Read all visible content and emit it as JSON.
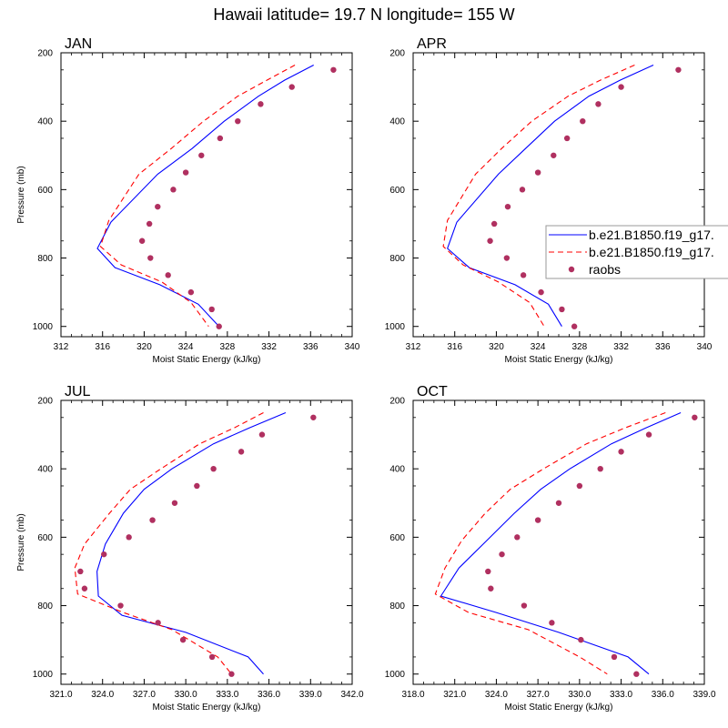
{
  "figure_title": "Hawaii  latitude= 19.7 N longitude= 155 W",
  "legend": {
    "entries": [
      {
        "label": "b.e21.B1850.f19_g17.",
        "style": "solid",
        "color": "#0000ff"
      },
      {
        "label": "b.e21.B1850.f19_g17.",
        "style": "dashed",
        "color": "#ff0000"
      },
      {
        "label": "raobs",
        "style": "marker",
        "color": "#b03060"
      }
    ]
  },
  "chart_data": [
    {
      "type": "line",
      "title": "JAN",
      "xlabel": "Moist Static Energy (kJ/kg)",
      "ylabel": "Pressure (mb)",
      "xlim": [
        312,
        340
      ],
      "xticks": [
        "312",
        "316",
        "320",
        "324",
        "328",
        "332",
        "336",
        "340"
      ],
      "ylim": [
        200,
        1030
      ],
      "yticks": [
        "200",
        "400",
        "600",
        "800",
        "1000"
      ],
      "series": [
        {
          "name": "b.e21.B1850.f19_g17. (solid)",
          "color": "#0000ff",
          "style": "solid",
          "x": [
            336.3,
            333.5,
            331.0,
            327.7,
            324.6,
            321.3,
            316.8,
            315.5,
            317.2,
            321.5,
            325.2,
            327.2
          ],
          "y": [
            236,
            280,
            327,
            400,
            480,
            555,
            695,
            772,
            828,
            878,
            935,
            1000
          ]
        },
        {
          "name": "b.e21.B1850.f19_g17. (dashed)",
          "color": "#ff0000",
          "style": "dashed",
          "x": [
            334.5,
            331.8,
            329.0,
            325.7,
            322.6,
            319.5,
            316.6,
            315.8,
            317.8,
            321.7,
            324.5,
            326.2
          ],
          "y": [
            236,
            280,
            327,
            400,
            480,
            555,
            690,
            766,
            820,
            870,
            930,
            1000
          ]
        },
        {
          "name": "raobs",
          "color": "#b03060",
          "style": "marker",
          "x": [
            338.2,
            334.2,
            331.2,
            329.0,
            327.3,
            325.5,
            324.0,
            322.8,
            321.3,
            320.5,
            319.8,
            320.6,
            322.3,
            324.5,
            326.5,
            327.2
          ],
          "y": [
            250,
            300,
            350,
            400,
            450,
            500,
            550,
            600,
            650,
            700,
            750,
            800,
            850,
            900,
            950,
            1000
          ]
        }
      ]
    },
    {
      "type": "line",
      "title": "APR",
      "xlabel": "Moist Static Energy (kJ/kg)",
      "ylabel": "",
      "xlim": [
        312,
        340
      ],
      "xticks": [
        "312",
        "316",
        "320",
        "324",
        "328",
        "332",
        "336",
        "340"
      ],
      "ylim": [
        200,
        1030
      ],
      "yticks": [
        "200",
        "400",
        "600",
        "800",
        "1000"
      ],
      "series": [
        {
          "name": "b.e21.B1850.f19_g17. (solid)",
          "color": "#0000ff",
          "style": "solid",
          "x": [
            335.1,
            331.9,
            328.9,
            325.6,
            322.8,
            320.2,
            316.2,
            315.3,
            317.4,
            321.8,
            325.0,
            326.3
          ],
          "y": [
            236,
            280,
            327,
            400,
            480,
            555,
            695,
            772,
            828,
            878,
            935,
            1000
          ]
        },
        {
          "name": "b.e21.B1850.f19_g17. (dashed)",
          "color": "#ff0000",
          "style": "dashed",
          "x": [
            333.3,
            330.0,
            326.9,
            323.4,
            320.5,
            318.0,
            315.3,
            314.9,
            316.8,
            320.2,
            323.2,
            324.6
          ],
          "y": [
            236,
            280,
            327,
            400,
            480,
            555,
            690,
            766,
            820,
            870,
            930,
            1000
          ]
        },
        {
          "name": "raobs",
          "color": "#b03060",
          "style": "marker",
          "x": [
            337.5,
            332.0,
            329.8,
            328.3,
            326.8,
            325.5,
            324.0,
            322.5,
            321.1,
            319.8,
            319.4,
            321.0,
            322.6,
            324.3,
            326.3,
            327.5
          ],
          "y": [
            250,
            300,
            350,
            400,
            450,
            500,
            550,
            600,
            650,
            700,
            750,
            800,
            850,
            900,
            950,
            1000
          ]
        }
      ]
    },
    {
      "type": "line",
      "title": "JUL",
      "xlabel": "Moist Static Energy (kJ/kg)",
      "ylabel": "Pressure (mb)",
      "xlim": [
        321,
        342
      ],
      "xticks": [
        "321.0",
        "324.0",
        "327.0",
        "330.0",
        "333.0",
        "336.0",
        "339.0",
        "342.0"
      ],
      "ylim": [
        200,
        1030
      ],
      "yticks": [
        "200",
        "400",
        "600",
        "800",
        "1000"
      ],
      "series": [
        {
          "name": "b.e21.B1850.f19_g17. (solid)",
          "color": "#0000ff",
          "style": "solid",
          "x": [
            337.2,
            334.6,
            332.0,
            329.0,
            327.0,
            325.5,
            324.2,
            323.6,
            323.7,
            325.4,
            330.0,
            334.5,
            335.6
          ],
          "y": [
            236,
            280,
            327,
            400,
            460,
            530,
            620,
            700,
            772,
            828,
            878,
            950,
            1000
          ]
        },
        {
          "name": "b.e21.B1850.f19_g17. (dashed)",
          "color": "#ff0000",
          "style": "dashed",
          "x": [
            335.6,
            333.5,
            331.0,
            328.2,
            326.0,
            324.5,
            322.7,
            322.0,
            322.2,
            325.5,
            329.0,
            332.3,
            333.3
          ],
          "y": [
            236,
            280,
            327,
            400,
            460,
            530,
            620,
            690,
            766,
            820,
            870,
            950,
            1000
          ]
        },
        {
          "name": "raobs",
          "color": "#b03060",
          "style": "marker",
          "x": [
            339.2,
            335.5,
            334.0,
            332.0,
            330.8,
            329.2,
            327.6,
            325.9,
            324.1,
            322.4,
            322.7,
            325.3,
            328.0,
            329.8,
            331.9,
            333.3
          ],
          "y": [
            250,
            300,
            350,
            400,
            450,
            500,
            550,
            600,
            650,
            700,
            750,
            800,
            850,
            900,
            950,
            1000
          ]
        }
      ]
    },
    {
      "type": "line",
      "title": "OCT",
      "xlabel": "Moist Static Energy (kJ/kg)",
      "ylabel": "",
      "xlim": [
        318,
        339
      ],
      "xticks": [
        "318.0",
        "321.0",
        "324.0",
        "327.0",
        "330.0",
        "333.0",
        "336.0",
        "339.0"
      ],
      "ylim": [
        200,
        1030
      ],
      "yticks": [
        "200",
        "400",
        "600",
        "800",
        "1000"
      ],
      "series": [
        {
          "name": "b.e21.B1850.f19_g17. (solid)",
          "color": "#0000ff",
          "style": "solid",
          "x": [
            337.3,
            334.8,
            332.3,
            329.3,
            327.2,
            325.3,
            323.3,
            321.3,
            320.0,
            324.0,
            328.5,
            333.5,
            335.0
          ],
          "y": [
            236,
            280,
            327,
            400,
            460,
            530,
            610,
            690,
            772,
            820,
            878,
            950,
            1000
          ]
        },
        {
          "name": "b.e21.B1850.f19_g17. (dashed)",
          "color": "#ff0000",
          "style": "dashed",
          "x": [
            336.2,
            333.3,
            330.5,
            327.4,
            325.0,
            323.2,
            321.5,
            320.3,
            319.6,
            322.0,
            326.3,
            330.0,
            332.0
          ],
          "y": [
            236,
            280,
            327,
            400,
            460,
            530,
            610,
            690,
            766,
            820,
            870,
            950,
            1000
          ]
        },
        {
          "name": "raobs",
          "color": "#b03060",
          "style": "marker",
          "x": [
            338.3,
            335.0,
            333.0,
            331.5,
            330.0,
            328.5,
            327.0,
            325.5,
            324.4,
            323.4,
            323.6,
            326.0,
            328.0,
            330.1,
            332.5,
            334.1
          ],
          "y": [
            250,
            300,
            350,
            400,
            450,
            500,
            550,
            600,
            650,
            700,
            750,
            800,
            850,
            900,
            950,
            1000
          ]
        }
      ]
    }
  ]
}
